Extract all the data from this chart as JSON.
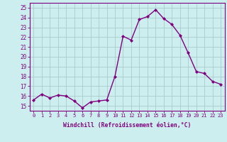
{
  "x": [
    0,
    1,
    2,
    3,
    4,
    5,
    6,
    7,
    8,
    9,
    10,
    11,
    12,
    13,
    14,
    15,
    16,
    17,
    18,
    19,
    20,
    21,
    22,
    23
  ],
  "y": [
    15.6,
    16.2,
    15.8,
    16.1,
    16.0,
    15.5,
    14.8,
    15.4,
    15.5,
    15.6,
    18.0,
    22.1,
    21.7,
    23.8,
    24.1,
    24.8,
    23.9,
    23.3,
    22.2,
    20.4,
    18.5,
    18.3,
    17.5,
    17.2
  ],
  "line_color": "#800080",
  "marker": "D",
  "marker_size": 2.0,
  "line_width": 1.0,
  "bg_color": "#cceeee",
  "grid_color": "#aacccc",
  "xlabel": "Windchill (Refroidissement éolien,°C)",
  "ylabel_ticks": [
    15,
    16,
    17,
    18,
    19,
    20,
    21,
    22,
    23,
    24,
    25
  ],
  "ylim": [
    14.5,
    25.5
  ],
  "xlim": [
    -0.5,
    23.5
  ],
  "xlabel_color": "#800080",
  "tick_color": "#800080",
  "tick_label_color": "#800080",
  "xlabel_fontsize": 5.8,
  "ytick_fontsize": 5.5,
  "xtick_fontsize": 5.0
}
